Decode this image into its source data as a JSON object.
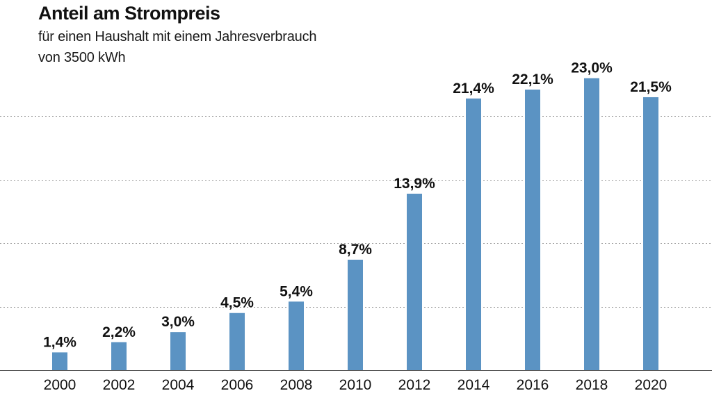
{
  "chart_data": {
    "type": "bar",
    "title": "Anteil am Strompreis",
    "subtitle_lines": [
      "für einen Haushalt mit einem Jahresverbrauch",
      "von 3500 kWh"
    ],
    "categories": [
      "2000",
      "2002",
      "2004",
      "2006",
      "2008",
      "2010",
      "2012",
      "2014",
      "2016",
      "2018",
      "2020"
    ],
    "values": [
      1.4,
      2.2,
      3.0,
      4.5,
      5.4,
      8.7,
      13.9,
      21.4,
      22.1,
      23.0,
      21.5
    ],
    "value_labels": [
      "1,4%",
      "2,2%",
      "3,0%",
      "4,5%",
      "5,4%",
      "8,7%",
      "13,9%",
      "21,4%",
      "22,1%",
      "23,0%",
      "21,5%"
    ],
    "ylim": [
      0,
      25
    ],
    "grid": true,
    "grid_style": "dotted",
    "bar_color": "#5b93c3",
    "label_color": "#111111",
    "grid_color": "#9a9a9a",
    "xlabel": "",
    "ylabel": ""
  }
}
